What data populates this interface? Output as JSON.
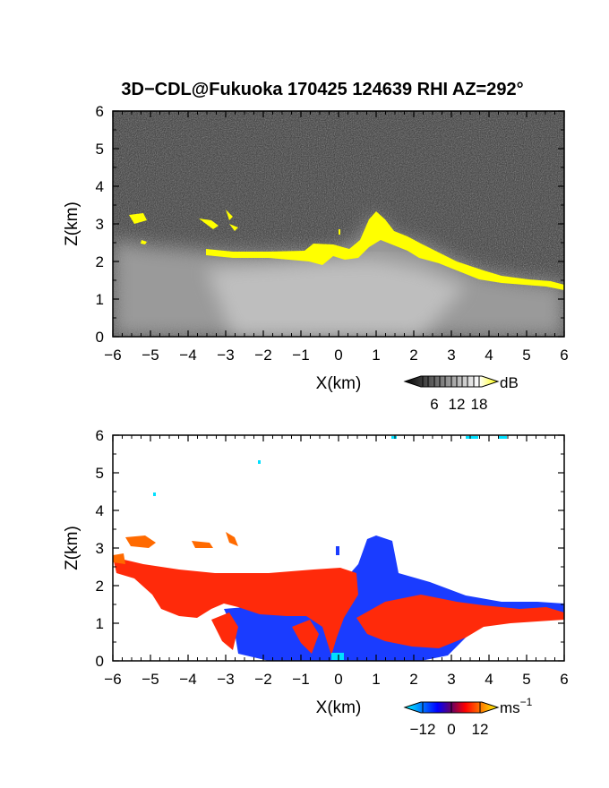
{
  "title": "3D−CDL@Fukuoka 170425 124639 RHI AZ=292°",
  "chart_data": [
    {
      "type": "heatmap",
      "panel": "reflectivity",
      "xlabel": "X(km)",
      "ylabel": "Z(km)",
      "xlim": [
        -6,
        6
      ],
      "ylim": [
        0,
        6
      ],
      "xticks": [
        "−6",
        "−5",
        "−4",
        "−3",
        "−2",
        "−1",
        "0",
        "1",
        "2",
        "3",
        "4",
        "5",
        "6"
      ],
      "yticks": [
        "0",
        "1",
        "2",
        "3",
        "4",
        "5",
        "6"
      ],
      "colorbar": {
        "unit": "dB",
        "tick_labels": [
          "6",
          "12",
          "18"
        ],
        "colors": [
          "#000000",
          "#ffffff",
          "#ffff00"
        ]
      },
      "cloud_top_km": [
        {
          "x": -6.0,
          "z": 2.7
        },
        {
          "x": -5.0,
          "z": 2.5
        },
        {
          "x": -4.0,
          "z": 2.4
        },
        {
          "x": -3.0,
          "z": 2.3
        },
        {
          "x": -2.0,
          "z": 2.25
        },
        {
          "x": -1.0,
          "z": 2.2
        },
        {
          "x": 0.0,
          "z": 2.3
        },
        {
          "x": 0.5,
          "z": 2.5
        },
        {
          "x": 1.0,
          "z": 3.2
        },
        {
          "x": 1.5,
          "z": 2.8
        },
        {
          "x": 2.0,
          "z": 2.5
        },
        {
          "x": 2.5,
          "z": 2.4
        },
        {
          "x": 3.0,
          "z": 2.2
        },
        {
          "x": 3.5,
          "z": 1.8
        },
        {
          "x": 4.0,
          "z": 1.6
        },
        {
          "x": 5.0,
          "z": 1.5
        },
        {
          "x": 6.0,
          "z": 1.3
        }
      ]
    },
    {
      "type": "heatmap",
      "panel": "doppler_velocity",
      "xlabel": "X(km)",
      "ylabel": "Z(km)",
      "xlim": [
        -6,
        6
      ],
      "ylim": [
        0,
        6
      ],
      "xticks": [
        "−6",
        "−5",
        "−4",
        "−3",
        "−2",
        "−1",
        "0",
        "1",
        "2",
        "3",
        "4",
        "5",
        "6"
      ],
      "yticks": [
        "0",
        "1",
        "2",
        "3",
        "4",
        "5",
        "6"
      ],
      "colorbar": {
        "unit": "ms",
        "unit_sup": "−1",
        "tick_labels": [
          "−12",
          "0",
          "12"
        ],
        "colors": [
          "#00ffff",
          "#0000ff",
          "#ff0000",
          "#ffff00"
        ]
      }
    }
  ]
}
